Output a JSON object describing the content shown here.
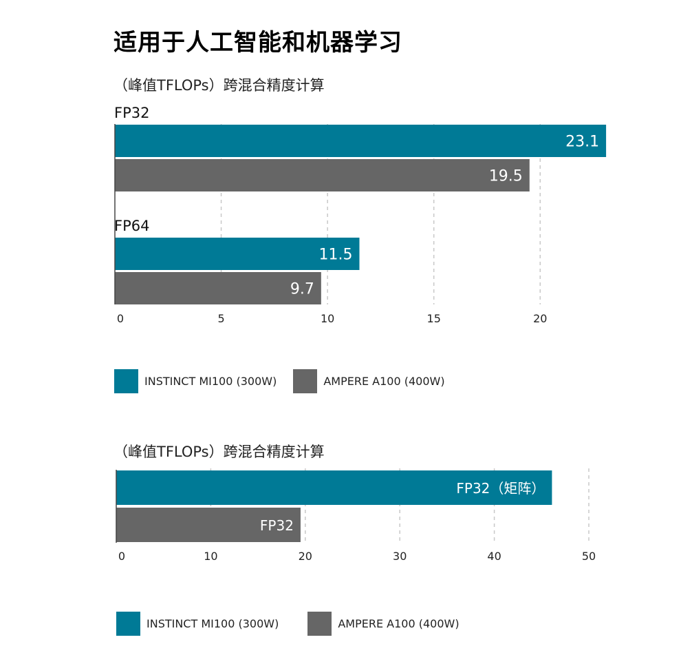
{
  "page": {
    "title": "适用于人工智能和机器学习"
  },
  "colors": {
    "mi100": "#007a96",
    "a100": "#666666",
    "grid": "#c8c8c8",
    "axis": "#444444"
  },
  "chart_data": [
    {
      "type": "bar",
      "orientation": "horizontal",
      "subtitle": "（峰值TFLOPs）跨混合精度计算",
      "categories": [
        "FP32",
        "FP64"
      ],
      "series": [
        {
          "name": "INSTINCT MI100 (300W)",
          "values": [
            23.1,
            11.5
          ],
          "labels": [
            "23.1",
            "11.5"
          ]
        },
        {
          "name": "AMPERE A100 (400W)",
          "values": [
            19.5,
            9.7
          ],
          "labels": [
            "19.5",
            "9.7"
          ]
        }
      ],
      "xlim": [
        0,
        23
      ],
      "xticks": [
        "0",
        "5",
        "10",
        "15",
        "20"
      ],
      "grid": true,
      "legend": "bottom-left",
      "legend_labels": [
        "INSTINCT MI100 (300W)",
        "AMPERE A100 (400W)"
      ]
    },
    {
      "type": "bar",
      "orientation": "horizontal",
      "subtitle": "（峰值TFLOPs）跨混合精度计算",
      "series": [
        {
          "name": "INSTINCT MI100 (300W)",
          "values": [
            46.1
          ],
          "labels": [
            "FP32（矩阵）"
          ]
        },
        {
          "name": "AMPERE A100 (400W)",
          "values": [
            19.5
          ],
          "labels": [
            "FP32"
          ]
        }
      ],
      "xlim": [
        0,
        50
      ],
      "xticks": [
        "0",
        "10",
        "20",
        "30",
        "40",
        "50"
      ],
      "grid": true,
      "legend": "bottom-left",
      "legend_labels": [
        "INSTINCT MI100 (300W)",
        "AMPERE A100 (400W)"
      ]
    }
  ]
}
